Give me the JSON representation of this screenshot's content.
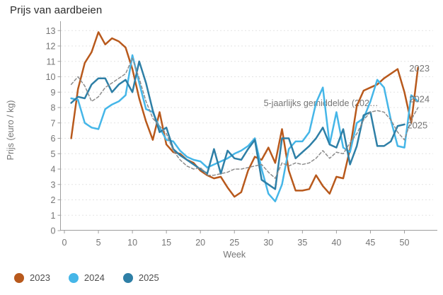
{
  "title": "Prijs van aardbeien",
  "legend": {
    "items": [
      {
        "label": "2023",
        "color": "#b8591c"
      },
      {
        "label": "2024",
        "color": "#45b6e8"
      },
      {
        "label": "2025",
        "color": "#2e7fa6"
      }
    ]
  },
  "chart_data": {
    "type": "line",
    "title": "Prijs van aardbeien",
    "xlabel": "Week",
    "ylabel": "Prijs (euro / kg)",
    "xlim": [
      0,
      54.5
    ],
    "ylim": [
      0,
      13
    ],
    "x_ticks": [
      0,
      5,
      10,
      15,
      20,
      25,
      30,
      35,
      40,
      45,
      50
    ],
    "y_ticks": [
      0,
      1,
      2,
      3,
      4,
      5,
      6,
      7,
      8,
      9,
      10,
      11,
      12,
      13
    ],
    "grid": "horizontal-dotted",
    "legend_position": "bottom-left",
    "colors": {
      "grid": "#e3e3e3",
      "axis": "#9e9e9e",
      "tick_text": "#757575",
      "annotation_text": "#757575"
    },
    "annotation": {
      "text": "5-jaarlijks gemiddelde (202…",
      "week": 29.3,
      "value": 8.28
    },
    "end_labels": [
      {
        "text": "2023",
        "week": 50.7,
        "value": 10.55
      },
      {
        "text": "2024",
        "week": 50.7,
        "value": 8.55
      },
      {
        "text": "2025",
        "week": 50.4,
        "value": 6.85
      }
    ],
    "series": [
      {
        "name": "2023",
        "color": "#b8591c",
        "style": "solid",
        "width": 2.5,
        "start_week": 1,
        "values": [
          6.0,
          9.2,
          10.9,
          11.6,
          12.9,
          12.1,
          12.5,
          12.3,
          11.9,
          10.5,
          8.6,
          7.1,
          5.9,
          7.7,
          5.6,
          5.1,
          5.0,
          4.6,
          4.4,
          3.9,
          3.6,
          3.4,
          3.5,
          2.8,
          2.2,
          2.5,
          3.9,
          4.8,
          4.6,
          5.4,
          4.4,
          6.6,
          3.9,
          2.6,
          2.6,
          2.7,
          3.6,
          2.9,
          2.4,
          3.5,
          3.4,
          5.3,
          8.1,
          9.1,
          9.3,
          9.5,
          9.9,
          10.2,
          10.5,
          9.0,
          7.0,
          10.6
        ]
      },
      {
        "name": "2024",
        "color": "#45b6e8",
        "style": "solid",
        "width": 2.5,
        "start_week": 1,
        "values": [
          8.6,
          8.5,
          7.0,
          6.7,
          6.6,
          7.9,
          8.2,
          8.4,
          8.8,
          11.4,
          9.6,
          7.9,
          7.7,
          6.7,
          5.9,
          5.8,
          5.2,
          4.8,
          4.6,
          4.5,
          4.1,
          4.3,
          4.5,
          4.7,
          5.0,
          5.2,
          5.5,
          6.0,
          4.0,
          2.4,
          1.9,
          3.0,
          5.3,
          5.8,
          5.8,
          6.4,
          8.3,
          9.3,
          5.6,
          7.7,
          5.4,
          5.1,
          7.0,
          7.3,
          8.4,
          9.8,
          9.3,
          7.2,
          5.5,
          5.4,
          8.8,
          8.4
        ]
      },
      {
        "name": "2025",
        "color": "#2e7fa6",
        "style": "solid",
        "width": 2.5,
        "start_week": 1,
        "values": [
          8.3,
          8.7,
          8.6,
          9.5,
          9.9,
          9.9,
          9.0,
          9.5,
          9.8,
          9.0,
          11.0,
          9.6,
          7.8,
          6.4,
          6.7,
          5.3,
          4.9,
          4.6,
          4.3,
          4.0,
          3.7,
          5.3,
          3.7,
          5.2,
          4.7,
          4.6,
          5.3,
          5.9,
          3.3,
          3.0,
          2.7,
          6.0,
          6.0,
          4.7,
          5.1,
          5.5,
          6.0,
          6.7,
          5.6,
          5.4,
          6.6,
          4.3,
          5.5,
          7.5,
          7.7,
          5.5,
          5.5,
          5.8,
          6.8,
          6.9
        ]
      },
      {
        "name": "5-jaarlijks gemiddelde",
        "color": "#8c8c8c",
        "style": "dashed",
        "width": 1.5,
        "start_week": 1,
        "values": [
          9.5,
          10.0,
          9.4,
          8.4,
          8.7,
          9.3,
          9.6,
          9.9,
          10.2,
          11.2,
          9.9,
          8.4,
          7.3,
          6.8,
          6.3,
          5.2,
          4.6,
          4.2,
          4.0,
          4.1,
          3.6,
          3.6,
          3.7,
          3.8,
          4.0,
          4.0,
          4.1,
          4.2,
          4.3,
          3.8,
          3.4,
          4.4,
          4.2,
          4.4,
          4.3,
          4.4,
          4.7,
          5.2,
          4.7,
          5.1,
          5.0,
          5.7,
          6.3,
          7.2,
          7.7,
          7.8,
          7.7,
          7.2,
          6.4,
          5.9,
          7.2,
          8.0
        ]
      }
    ]
  }
}
